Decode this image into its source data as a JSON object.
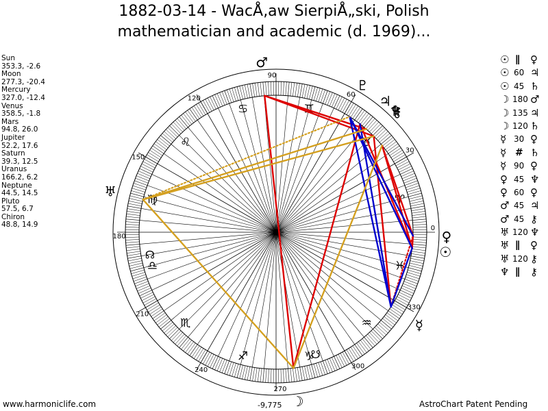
{
  "title": {
    "line1": "1882-03-14 - WacÅ‚aw SierpiÅ„ski, Polish",
    "line2": "mathematician and academic (d. 1969)..."
  },
  "planets": [
    {
      "name": "Sun",
      "coords": "353.3, -2.6",
      "lon": 353.3,
      "glyph": "☉",
      "color": "#000000"
    },
    {
      "name": "Moon",
      "coords": "277.3, -20.4",
      "lon": 277.3,
      "glyph": "☽",
      "color": "#000000"
    },
    {
      "name": "Mercury",
      "coords": "327.0, -12.4",
      "lon": 327.0,
      "glyph": "☿",
      "color": "#000000"
    },
    {
      "name": "Venus",
      "coords": "358.5, -1.8",
      "lon": 358.5,
      "glyph": "♀",
      "color": "#000000"
    },
    {
      "name": "Mars",
      "coords": "94.8, 26.0",
      "lon": 94.8,
      "glyph": "♂",
      "color": "#000000"
    },
    {
      "name": "Jupiter",
      "coords": "52.2, 17.6",
      "lon": 52.2,
      "glyph": "♃",
      "color": "#000000"
    },
    {
      "name": "Saturn",
      "coords": "39.3, 12.5",
      "lon": 39.3,
      "glyph": "♄",
      "color": "#000000"
    },
    {
      "name": "Uranus",
      "coords": "166.2, 6.2",
      "lon": 166.2,
      "glyph": "♅",
      "color": "#000000"
    },
    {
      "name": "Neptune",
      "coords": "44.5, 14.5",
      "lon": 44.5,
      "glyph": "♆",
      "color": "#000000"
    },
    {
      "name": "Pluto",
      "coords": "57.5, 6.7",
      "lon": 57.5,
      "glyph": "♇",
      "color": "#000000"
    },
    {
      "name": "Chiron",
      "coords": "48.8, 14.9",
      "lon": 48.8,
      "glyph": "⚷",
      "color": "#000000"
    }
  ],
  "degree_labels": [
    "0",
    "30",
    "60",
    "90",
    "120",
    "150",
    "180",
    "210",
    "240",
    "270",
    "300",
    "330"
  ],
  "zodiac_signs": [
    {
      "name": "Aries",
      "glyph": "♈",
      "lon": 15
    },
    {
      "name": "Taurus",
      "glyph": "♉",
      "lon": 45
    },
    {
      "name": "Gemini",
      "glyph": "♊",
      "lon": 75
    },
    {
      "name": "Cancer",
      "glyph": "♋",
      "lon": 105
    },
    {
      "name": "Leo",
      "glyph": "♌",
      "lon": 135
    },
    {
      "name": "Virgo",
      "glyph": "♍",
      "lon": 165
    },
    {
      "name": "Libra",
      "glyph": "♎",
      "lon": 195
    },
    {
      "name": "Scorpio",
      "glyph": "♏",
      "lon": 225
    },
    {
      "name": "Sagittarius",
      "glyph": "♐",
      "lon": 255
    },
    {
      "name": "Capricorn",
      "glyph": "♑",
      "lon": 285
    },
    {
      "name": "Aquarius",
      "glyph": "♒",
      "lon": 315
    },
    {
      "name": "Pisces",
      "glyph": "♓",
      "lon": 345
    }
  ],
  "nodes": {
    "north_glyph": "☊",
    "north_lon": 190,
    "south_glyph": "☋",
    "south_lon": 288
  },
  "aspect_lines": [
    {
      "p1": "Sun",
      "p2": "Venus",
      "color": "#dd0000",
      "style": "solid"
    },
    {
      "p1": "Sun",
      "p2": "Jupiter",
      "color": "#dd0000",
      "style": "solid"
    },
    {
      "p1": "Sun",
      "p2": "Saturn",
      "color": "#dd0000",
      "style": "solid"
    },
    {
      "p1": "Venus",
      "p2": "Saturn",
      "color": "#dd0000",
      "style": "solid"
    },
    {
      "p1": "Moon",
      "p2": "Mars",
      "color": "#dd0000",
      "style": "solid"
    },
    {
      "p1": "Moon",
      "p2": "Jupiter",
      "color": "#dd0000",
      "style": "solid"
    },
    {
      "p1": "Mars",
      "p2": "Neptune",
      "color": "#dd0000",
      "style": "solid"
    },
    {
      "p1": "Mars",
      "p2": "Chiron",
      "color": "#dd0000",
      "style": "solid"
    },
    {
      "p1": "Mercury",
      "p2": "Neptune",
      "color": "#dd0000",
      "style": "solid"
    },
    {
      "p1": "Mercury",
      "p2": "Venus",
      "color": "#dd0000",
      "style": "dotted"
    },
    {
      "p1": "Sun",
      "p2": "Pluto",
      "color": "#0000cc",
      "style": "solid"
    },
    {
      "p1": "Mercury",
      "p2": "Jupiter",
      "color": "#0000cc",
      "style": "solid"
    },
    {
      "p1": "Mercury",
      "p2": "Pluto",
      "color": "#0000cc",
      "style": "solid"
    },
    {
      "p1": "Sun",
      "p2": "Mercury",
      "color": "#0000cc",
      "style": "solid"
    },
    {
      "p1": "Venus",
      "p2": "Pluto",
      "color": "#0000cc",
      "style": "solid"
    },
    {
      "p1": "Moon",
      "p2": "Saturn",
      "color": "#d4a020",
      "style": "solid"
    },
    {
      "p1": "Moon",
      "p2": "Uranus",
      "color": "#d4a020",
      "style": "solid"
    },
    {
      "p1": "Uranus",
      "p2": "Neptune",
      "color": "#d4a020",
      "style": "solid"
    },
    {
      "p1": "Uranus",
      "p2": "Chiron",
      "color": "#d4a020",
      "style": "solid"
    },
    {
      "p1": "Uranus",
      "p2": "Pluto",
      "color": "#d4a020",
      "style": "dotted"
    }
  ],
  "aspect_list": [
    {
      "g1": "☉",
      "asp": "∥",
      "g2": "♀"
    },
    {
      "g1": "☉",
      "asp": "60",
      "g2": "♃"
    },
    {
      "g1": "☉",
      "asp": "45",
      "g2": "♄"
    },
    {
      "g1": "☽",
      "asp": "180",
      "g2": "♂"
    },
    {
      "g1": "☽",
      "asp": "135",
      "g2": "♃"
    },
    {
      "g1": "☽",
      "asp": "120",
      "g2": "♄"
    },
    {
      "g1": "☿",
      "asp": "30",
      "g2": "♀"
    },
    {
      "g1": "☿",
      "asp": "#",
      "g2": "♄"
    },
    {
      "g1": "☿",
      "asp": "90",
      "g2": "♀"
    },
    {
      "g1": "♀",
      "asp": "45",
      "g2": "♆"
    },
    {
      "g1": "♀",
      "asp": "60",
      "g2": "♀"
    },
    {
      "g1": "♂",
      "asp": "45",
      "g2": "♃"
    },
    {
      "g1": "♂",
      "asp": "45",
      "g2": "⚷"
    },
    {
      "g1": "♅",
      "asp": "120",
      "g2": "♆"
    },
    {
      "g1": "♅",
      "asp": "∥",
      "g2": "♀"
    },
    {
      "g1": "♅",
      "asp": "120",
      "g2": "⚷"
    },
    {
      "g1": "♆",
      "asp": "∥",
      "g2": "⚷"
    }
  ],
  "bottom_value": "-9,775",
  "footer": {
    "left": "www.harmoniclife.com",
    "right": "AstroChart Patent Pending"
  }
}
